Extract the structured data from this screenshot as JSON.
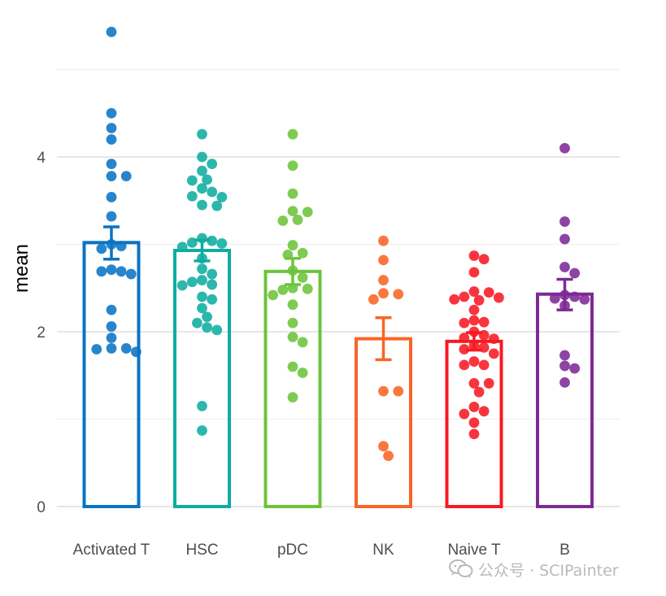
{
  "chart_data": {
    "type": "bar",
    "ylabel": "mean",
    "ylim": [
      0,
      5.7
    ],
    "yticks": [
      0,
      2,
      4
    ],
    "grid": true,
    "categories": [
      "Activated T",
      "HSC",
      "pDC",
      "NK",
      "Naive T",
      "B"
    ],
    "colors": [
      "#0a74c4",
      "#0fada0",
      "#6cc43a",
      "#fb6426",
      "#f71923",
      "#7d2a96"
    ],
    "means": [
      3.02,
      2.93,
      2.69,
      1.92,
      1.89,
      2.43
    ],
    "error_upper": [
      3.2,
      3.05,
      2.84,
      2.16,
      1.99,
      2.6
    ],
    "error_lower": [
      2.83,
      2.81,
      2.54,
      1.68,
      1.79,
      2.25
    ],
    "points": [
      [
        5.43,
        4.5,
        4.33,
        4.2,
        3.92,
        3.78,
        3.78,
        3.54,
        3.32,
        3.0,
        2.98,
        2.95,
        2.71,
        2.69,
        2.69,
        2.66,
        2.25,
        2.06,
        1.93,
        1.81,
        1.81,
        1.8,
        1.77
      ],
      [
        4.26,
        4.0,
        3.92,
        3.84,
        3.74,
        3.73,
        3.64,
        3.6,
        3.55,
        3.54,
        3.45,
        3.44,
        3.07,
        3.04,
        3.02,
        3.01,
        2.97,
        2.84,
        2.72,
        2.66,
        2.59,
        2.57,
        2.54,
        2.53,
        2.4,
        2.37,
        2.27,
        2.17,
        2.1,
        2.05,
        2.02,
        1.15,
        0.87
      ],
      [
        4.26,
        3.9,
        3.58,
        3.38,
        3.37,
        3.28,
        3.27,
        2.99,
        2.9,
        2.88,
        2.7,
        2.62,
        2.5,
        2.49,
        2.48,
        2.42,
        2.31,
        2.1,
        1.94,
        1.88,
        1.6,
        1.53,
        1.25
      ],
      [
        3.04,
        2.82,
        2.59,
        2.44,
        2.43,
        2.37,
        1.32,
        1.32,
        0.69,
        0.58
      ],
      [
        2.87,
        2.83,
        2.68,
        2.46,
        2.45,
        2.4,
        2.39,
        2.37,
        2.36,
        2.25,
        2.13,
        2.11,
        2.1,
        2.0,
        1.96,
        1.93,
        1.92,
        1.84,
        1.82,
        1.8,
        1.75,
        1.66,
        1.62,
        1.62,
        1.41,
        1.41,
        1.31,
        1.14,
        1.09,
        1.06,
        0.96,
        0.83
      ],
      [
        4.1,
        3.26,
        3.06,
        2.74,
        2.67,
        2.42,
        2.4,
        2.38,
        2.37,
        2.3,
        1.73,
        1.61,
        1.58,
        1.42
      ]
    ]
  },
  "watermark": {
    "icon": "wechat-icon",
    "text": "公众号 · SCIPainter"
  }
}
